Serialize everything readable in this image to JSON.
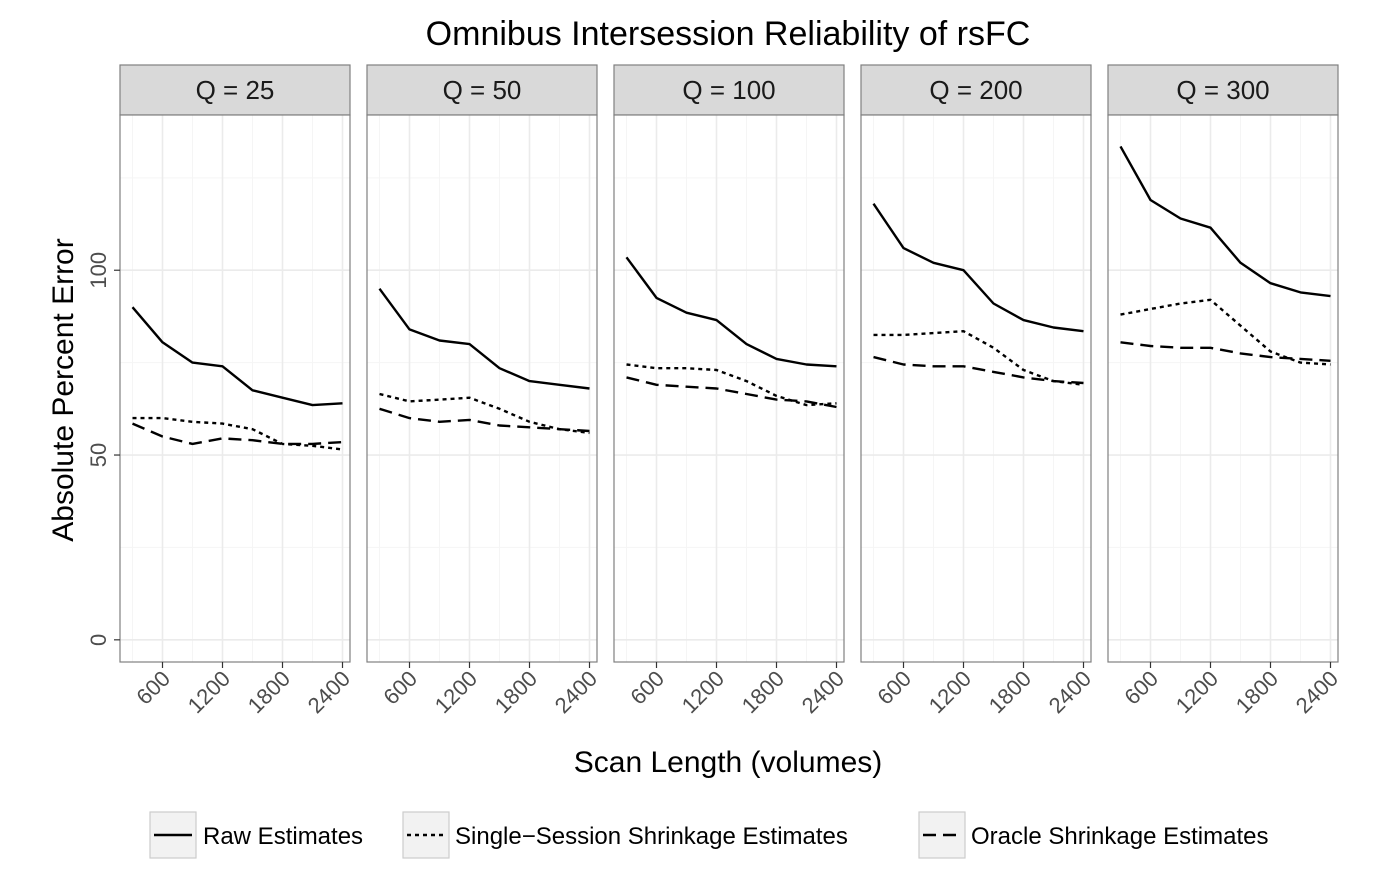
{
  "chart_data": {
    "type": "line",
    "title": "Omnibus Intersession Reliability of rsFC",
    "xlabel": "Scan Length (volumes)",
    "ylabel": "Absolute Percent Error",
    "x": [
      300,
      600,
      900,
      1200,
      1500,
      1800,
      2100,
      2400
    ],
    "xlim": [
      175,
      2475
    ],
    "x_ticks": [
      600,
      1200,
      1800,
      2400
    ],
    "ylim": [
      -6,
      142
    ],
    "y_ticks": [
      0,
      50,
      100
    ],
    "grid": true,
    "legend_position": "bottom",
    "panels": [
      {
        "label": "Q = 25",
        "series": [
          {
            "name": "Raw Estimates",
            "values": [
              90,
              80.5,
              75,
              74,
              67.5,
              65.5,
              63.5,
              64
            ]
          },
          {
            "name": "Single−Session Shrinkage Estimates",
            "values": [
              60,
              60,
              59,
              58.5,
              57,
              53,
              52.5,
              51.5
            ]
          },
          {
            "name": "Oracle Shrinkage Estimates",
            "values": [
              58.5,
              55,
              53,
              54.5,
              54,
              53,
              53,
              53.5
            ]
          }
        ]
      },
      {
        "label": "Q = 50",
        "series": [
          {
            "name": "Raw Estimates",
            "values": [
              95,
              84,
              81,
              80,
              73.5,
              70,
              69,
              68
            ]
          },
          {
            "name": "Single−Session Shrinkage Estimates",
            "values": [
              66.5,
              64.5,
              65,
              65.5,
              62.5,
              59,
              57,
              56
            ]
          },
          {
            "name": "Oracle Shrinkage Estimates",
            "values": [
              62.5,
              60,
              59,
              59.5,
              58,
              57.5,
              57,
              56.5
            ]
          }
        ]
      },
      {
        "label": "Q = 100",
        "series": [
          {
            "name": "Raw Estimates",
            "values": [
              103.5,
              92.5,
              88.5,
              86.5,
              80,
              76,
              74.5,
              74
            ]
          },
          {
            "name": "Single−Session Shrinkage Estimates",
            "values": [
              74.5,
              73.5,
              73.5,
              73,
              70,
              66,
              63.5,
              64
            ]
          },
          {
            "name": "Oracle Shrinkage Estimates",
            "values": [
              71,
              69,
              68.5,
              68,
              66.5,
              65,
              64.5,
              63
            ]
          }
        ]
      },
      {
        "label": "Q = 200",
        "series": [
          {
            "name": "Raw Estimates",
            "values": [
              118,
              106,
              102,
              100,
              91,
              86.5,
              84.5,
              83.5
            ]
          },
          {
            "name": "Single−Session Shrinkage Estimates",
            "values": [
              82.5,
              82.5,
              83,
              83.5,
              79,
              73,
              70,
              69
            ]
          },
          {
            "name": "Oracle Shrinkage Estimates",
            "values": [
              76.5,
              74.5,
              74,
              74,
              72.5,
              71,
              70,
              69.5
            ]
          }
        ]
      },
      {
        "label": "Q = 300",
        "series": [
          {
            "name": "Raw Estimates",
            "values": [
              133.5,
              119,
              114,
              111.5,
              102,
              96.5,
              94,
              93
            ]
          },
          {
            "name": "Single−Session Shrinkage Estimates",
            "values": [
              88,
              89.5,
              91,
              92,
              85,
              78,
              75,
              74.5
            ]
          },
          {
            "name": "Oracle Shrinkage Estimates",
            "values": [
              80.5,
              79.5,
              79,
              79,
              77.5,
              76.5,
              76,
              75.5
            ]
          }
        ]
      }
    ],
    "legend": [
      {
        "name": "Raw Estimates",
        "dash": "solid"
      },
      {
        "name": "Single−Session Shrinkage Estimates",
        "dash": "dotted"
      },
      {
        "name": "Oracle Shrinkage Estimates",
        "dash": "dashed"
      }
    ],
    "colors": {
      "line": "#000000",
      "strip_fill": "#d9d9d9",
      "strip_border": "#808080",
      "panel_border": "#808080",
      "grid_major": "#ebebeb",
      "grid_minor": "#f5f5f5",
      "tick_text": "#4d4d4d"
    }
  }
}
